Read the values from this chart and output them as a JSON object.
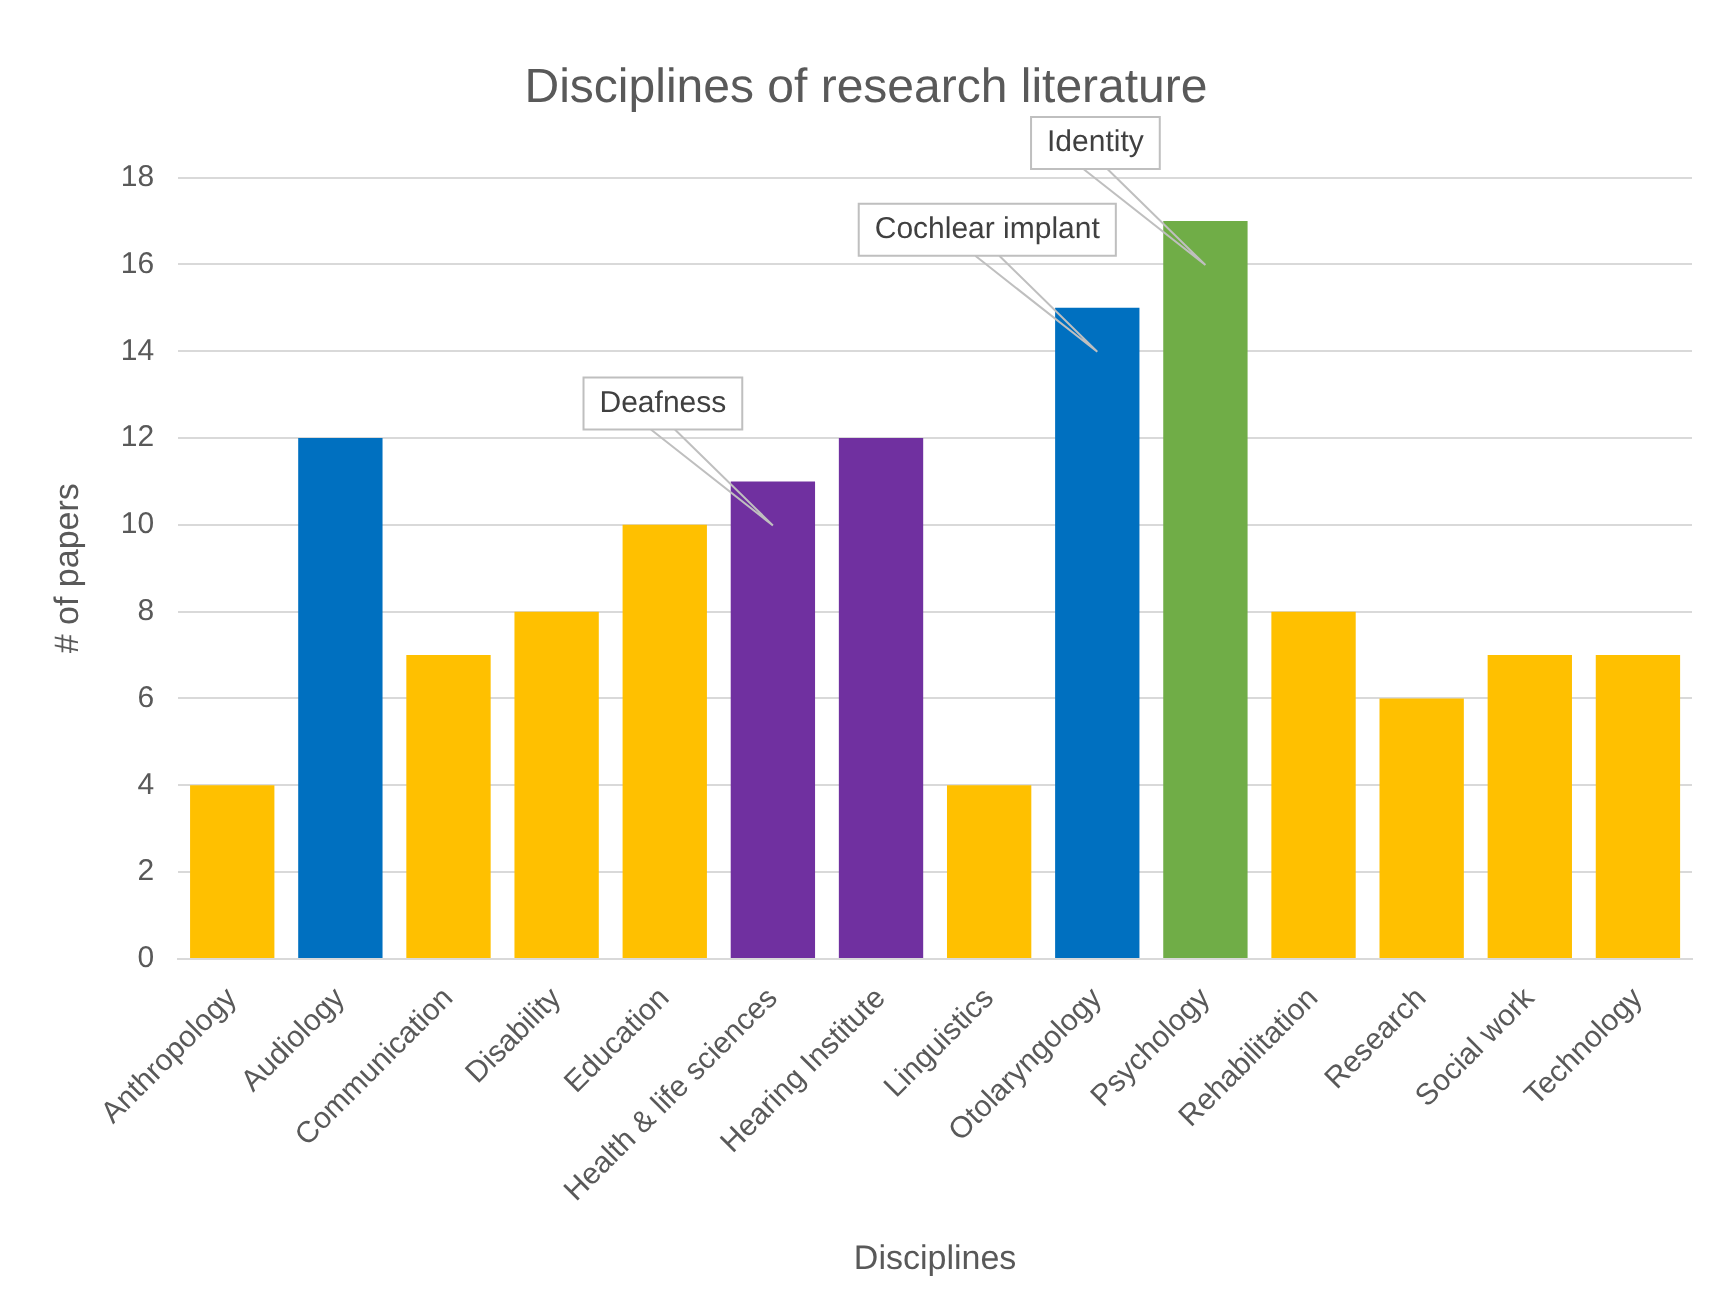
{
  "chart_data": {
    "type": "bar",
    "title": "Disciplines of research literature",
    "xlabel": "Disciplines",
    "ylabel": "# of papers",
    "categories": [
      "Anthropology",
      "Audiology",
      "Communication",
      "Disability",
      "Education",
      "Health & life sciences",
      "Hearing Institute",
      "Linguistics",
      "Otolaryngology",
      "Psychology",
      "Rehabilitation",
      "Research",
      "Social work",
      "Technology"
    ],
    "values": [
      4,
      12,
      7,
      8,
      10,
      11,
      12,
      4,
      15,
      17,
      8,
      6,
      7,
      7
    ],
    "colors": [
      "#ffc000",
      "#0070c0",
      "#ffc000",
      "#ffc000",
      "#ffc000",
      "#7030a0",
      "#7030a0",
      "#ffc000",
      "#0070c0",
      "#70ad47",
      "#ffc000",
      "#ffc000",
      "#ffc000",
      "#ffc000"
    ],
    "ylim": [
      0,
      18
    ],
    "yticks": [
      0,
      2,
      4,
      6,
      8,
      10,
      12,
      14,
      16,
      18
    ],
    "grid": "y",
    "legend": false,
    "annotations": [
      {
        "text": "Cochlear implant",
        "x": "Otolaryngology",
        "y": 15
      },
      {
        "text": "Deafness",
        "x": "Health & life sciences",
        "y": 11
      },
      {
        "text": "Identity",
        "x": "Psychology",
        "y": 17
      }
    ]
  }
}
